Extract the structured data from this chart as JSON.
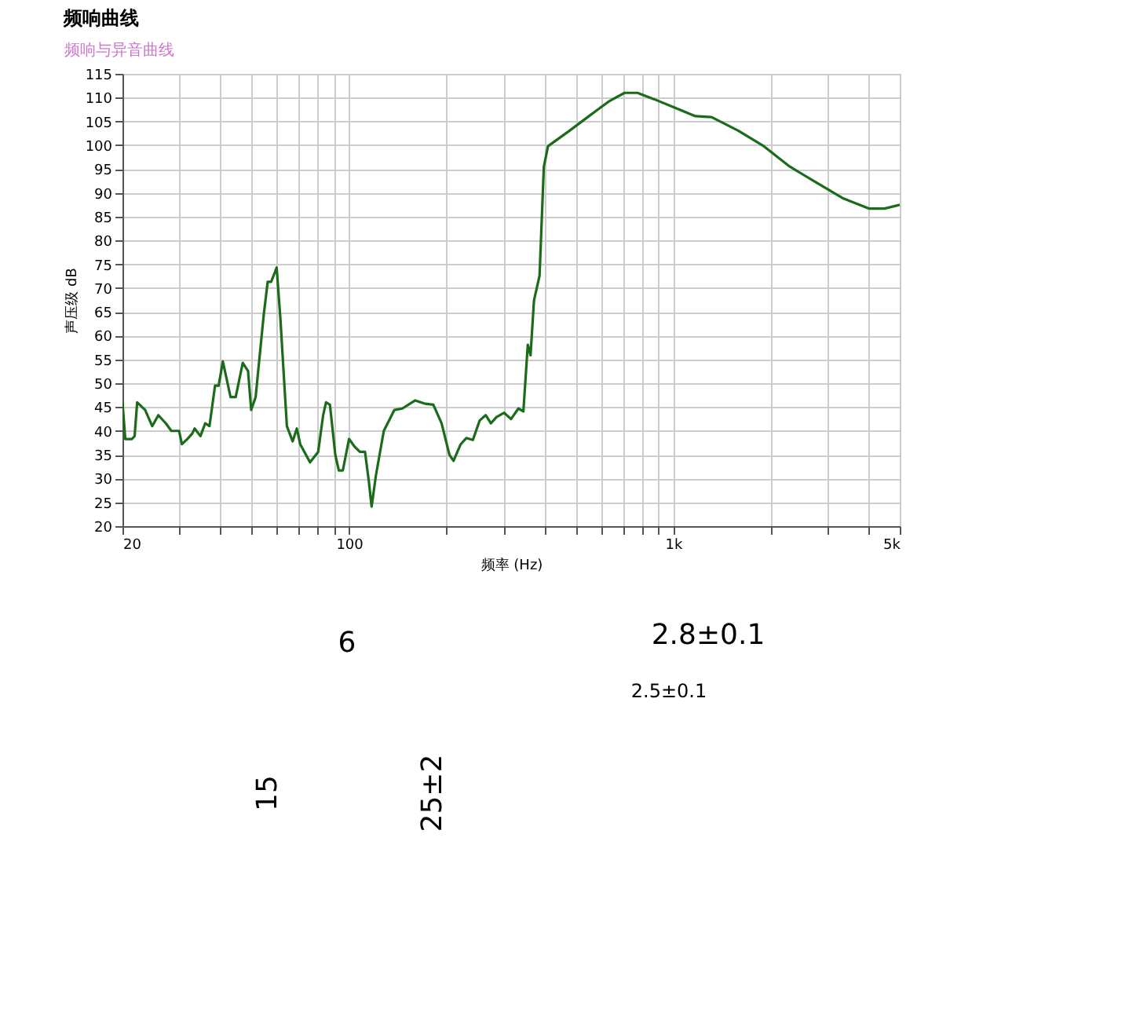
{
  "chart_data": {
    "type": "line",
    "title": "频响曲线",
    "subtitle": "频响与异音曲线",
    "xlabel": "频率 (Hz)",
    "ylabel": "声压级 dB",
    "log": "x",
    "grid": true,
    "xlim": [
      20,
      5000
    ],
    "ylim": [
      20,
      115
    ],
    "xticks": [
      {
        "value": 20,
        "label": "20"
      },
      {
        "value": 30,
        "label": null
      },
      {
        "value": 40,
        "label": null
      },
      {
        "value": 50,
        "label": null
      },
      {
        "value": 60,
        "label": null
      },
      {
        "value": 70,
        "label": null
      },
      {
        "value": 80,
        "label": null
      },
      {
        "value": 90,
        "label": null
      },
      {
        "value": 100,
        "label": "100"
      },
      {
        "value": 200,
        "label": null
      },
      {
        "value": 300,
        "label": null
      },
      {
        "value": 400,
        "label": null
      },
      {
        "value": 500,
        "label": null
      },
      {
        "value": 600,
        "label": null
      },
      {
        "value": 700,
        "label": null
      },
      {
        "value": 800,
        "label": null
      },
      {
        "value": 900,
        "label": null
      },
      {
        "value": 1000,
        "label": "1k"
      },
      {
        "value": 2000,
        "label": null
      },
      {
        "value": 3000,
        "label": null
      },
      {
        "value": 4000,
        "label": null
      },
      {
        "value": 5000,
        "label": "5k"
      }
    ],
    "yticks": [
      20,
      25,
      30,
      35,
      40,
      45,
      50,
      55,
      60,
      65,
      70,
      75,
      80,
      85,
      90,
      95,
      100,
      105,
      110,
      115
    ],
    "series": [
      {
        "color": "#1a6b1a",
        "x": [
          20,
          20.4,
          21.4,
          21.8,
          22.2,
          23.5,
          24.7,
          25.8,
          27.2,
          28.3,
          29.9,
          30.5,
          31.7,
          32.8,
          33.4,
          34.8,
          36.0,
          37.1,
          38.6,
          39.6,
          40.8,
          43.1,
          44.7,
          47.0,
          48.8,
          49.9,
          51.5,
          54.5,
          56.1,
          57.5,
          59.8,
          61.4,
          64.3,
          67.0,
          69.0,
          70.7,
          75.8,
          80.3,
          83.2,
          84.9,
          87.3,
          90.7,
          93.0,
          95.7,
          100,
          104,
          108,
          112,
          115,
          117.4,
          121,
          128,
          138,
          146,
          160,
          172,
          182,
          193,
          204,
          210,
          221,
          230,
          241,
          253,
          264,
          274,
          285,
          301,
          316,
          333,
          345,
          356,
          363,
          372,
          387,
          399,
          411,
          480,
          557,
          633,
          708,
          776,
          871,
          1010,
          1171,
          1313,
          1583,
          1904,
          2290,
          2757,
          3329,
          4013,
          4487,
          5000
        ],
        "values": [
          46,
          38.3,
          38.3,
          38.9,
          46,
          44.4,
          41,
          43.3,
          41.6,
          40,
          40,
          37.2,
          38.3,
          39.4,
          40.5,
          38.9,
          41.6,
          41,
          49.5,
          49.5,
          54.6,
          47.1,
          47.1,
          54.3,
          52.6,
          44.4,
          47.1,
          64.1,
          71.3,
          71.3,
          74.3,
          63.6,
          41,
          37.8,
          40.5,
          37.2,
          33.4,
          35.6,
          43.3,
          46,
          45.5,
          35,
          31.7,
          31.7,
          38.3,
          36.7,
          35.6,
          35.6,
          29.6,
          24.1,
          30.6,
          40,
          44.4,
          44.7,
          46.4,
          45.7,
          45.5,
          41.6,
          35,
          33.7,
          37.2,
          38.5,
          38.1,
          42.2,
          43.3,
          41.6,
          42.9,
          43.8,
          42.5,
          44.7,
          44.1,
          58.1,
          55.9,
          67.4,
          72.6,
          95.5,
          99.8,
          103.1,
          106.4,
          109.2,
          111.0,
          111.0,
          109.7,
          107.9,
          106.1,
          105.9,
          103.1,
          99.8,
          95.5,
          92.2,
          88.9,
          86.7,
          86.7,
          87.5
        ]
      }
    ],
    "annotations": [
      "6",
      "15",
      "25±2",
      "2.8±0.1",
      "2.5±0.1"
    ]
  }
}
